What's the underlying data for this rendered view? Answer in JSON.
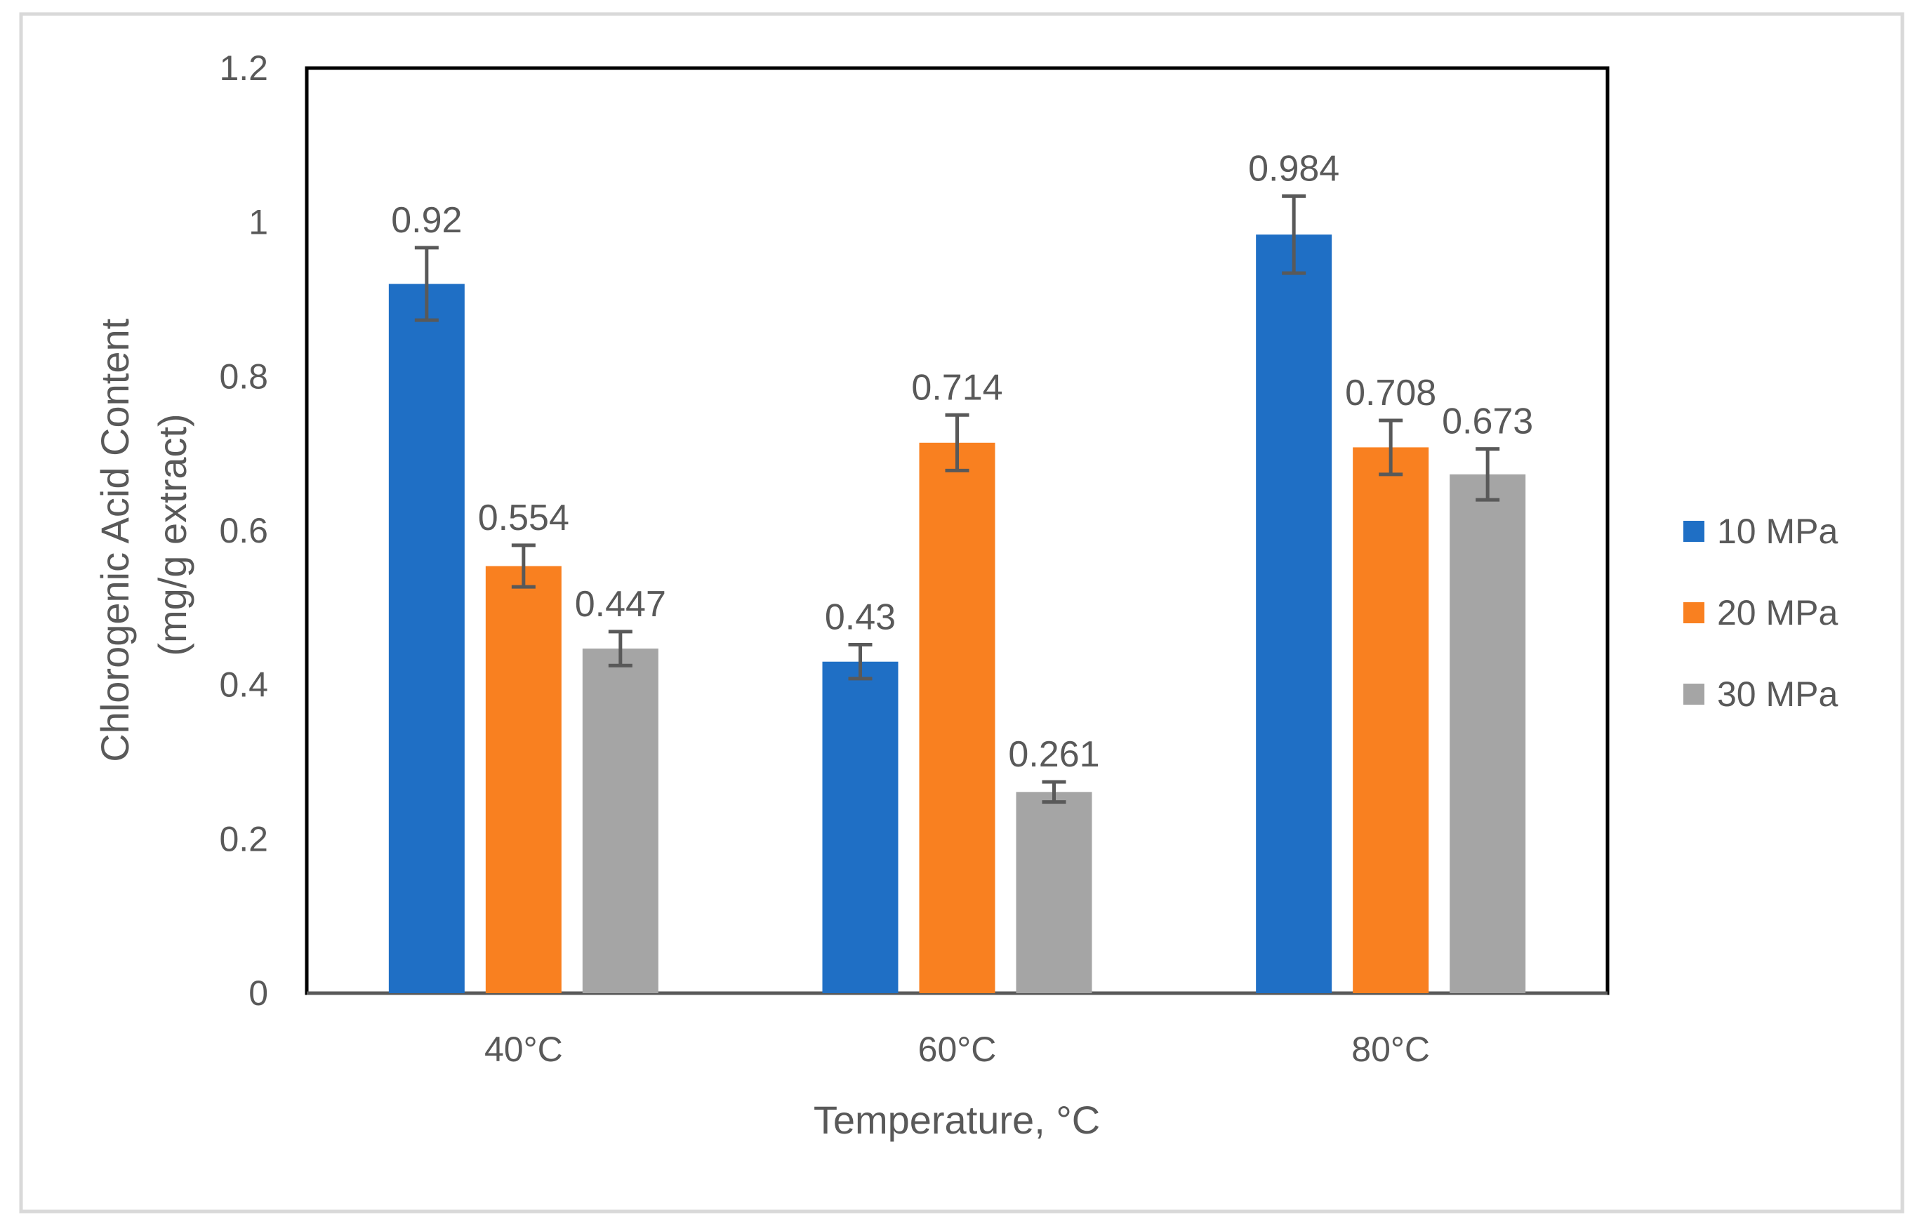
{
  "chart_data": {
    "type": "bar",
    "title": "",
    "xlabel": "Temperature, °C",
    "ylabel_lines": [
      "Chlorogenic Acid Content",
      "(mg/g extract)"
    ],
    "categories": [
      "40°C",
      "60°C",
      "80°C"
    ],
    "ylim": [
      0,
      1.2
    ],
    "yticks": [
      0,
      0.2,
      0.4,
      0.6,
      0.8,
      1,
      1.2
    ],
    "ytick_labels": [
      "0",
      "0.2",
      "0.4",
      "0.6",
      "0.8",
      "1",
      "1.2"
    ],
    "grid": false,
    "legend_position": "right",
    "error_bars": true,
    "series": [
      {
        "name": "10 MPa",
        "color": "#1F6FC5",
        "values": [
          0.92,
          0.43,
          0.984
        ],
        "labels": [
          "0.92",
          "0.43",
          "0.984"
        ],
        "errors": [
          0.047,
          0.022,
          0.05
        ]
      },
      {
        "name": "20 MPa",
        "color": "#F98020",
        "values": [
          0.554,
          0.714,
          0.708
        ],
        "labels": [
          "0.554",
          "0.714",
          "0.708"
        ],
        "errors": [
          0.027,
          0.036,
          0.035
        ]
      },
      {
        "name": "30 MPa",
        "color": "#A5A5A5",
        "values": [
          0.447,
          0.261,
          0.673
        ],
        "labels": [
          "0.447",
          "0.261",
          "0.673"
        ],
        "errors": [
          0.022,
          0.013,
          0.033
        ]
      }
    ]
  }
}
